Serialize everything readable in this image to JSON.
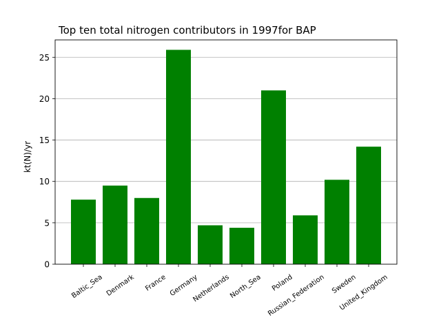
{
  "chart_data": {
    "type": "bar",
    "title": "Top ten total nitrogen contributors in 1997for  BAP",
    "xlabel": "",
    "ylabel": "kt(N)/yr",
    "categories": [
      "Baltic_Sea",
      "Denmark",
      "France",
      "Germany",
      "Netherlands",
      "North_Sea",
      "Poland",
      "Russian_Federation",
      "Sweden",
      "United_Kingdom"
    ],
    "values": [
      7.8,
      9.5,
      8.0,
      25.9,
      4.7,
      4.4,
      21.0,
      5.9,
      10.2,
      14.2
    ],
    "ylim": [
      0,
      27.1
    ],
    "yticks": [
      0,
      5,
      10,
      15,
      20,
      25
    ],
    "grid": "horizontal",
    "bar_color": "#008000"
  }
}
